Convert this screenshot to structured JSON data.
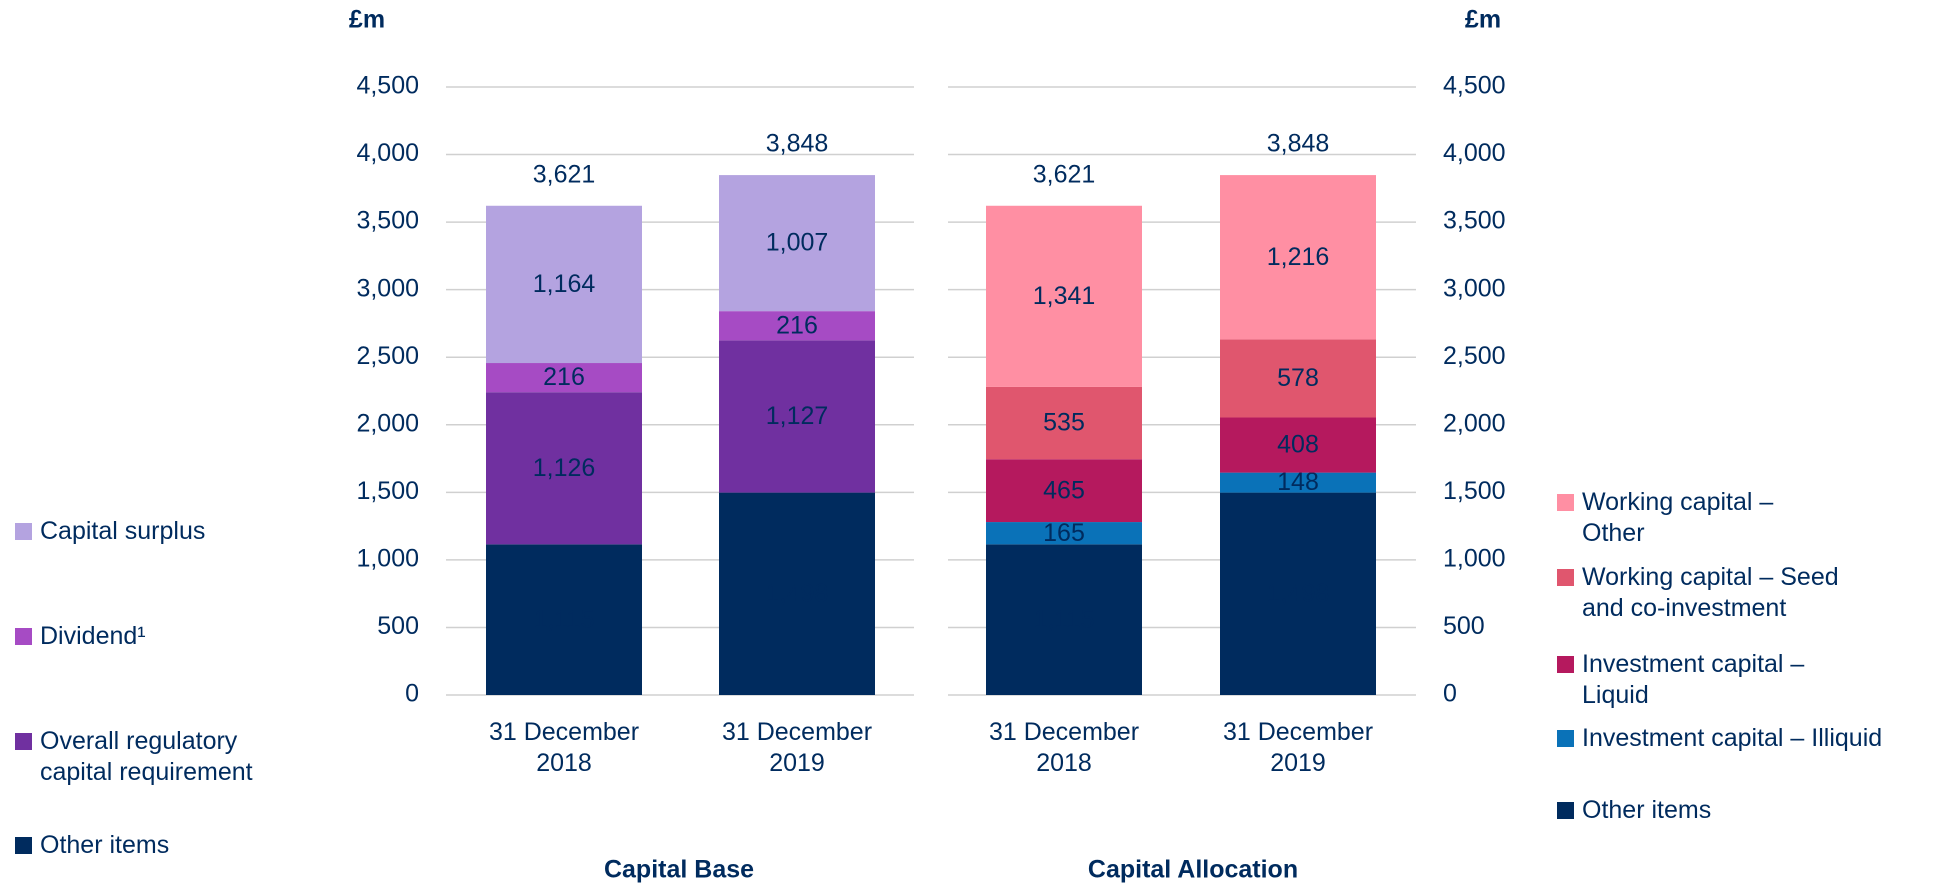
{
  "chart_data": [
    {
      "type": "bar",
      "stacked": true,
      "title": "Capital Base",
      "ylabel": "£m",
      "categories": [
        "31 December 2018",
        "31 December 2019"
      ],
      "series": [
        {
          "name": "Other items",
          "color": "#002b5e",
          "values": [
            1115,
            1498
          ],
          "value_labels": [
            "1,115",
            "1,498"
          ]
        },
        {
          "name": "Overall regulatory capital requirement",
          "color": "#7030a0",
          "values": [
            1126,
            1127
          ],
          "value_labels": [
            "1,126",
            "1,127"
          ]
        },
        {
          "name": "Dividend¹",
          "color": "#a64bc4",
          "values": [
            216,
            216
          ]
        },
        {
          "name": "Capital surplus",
          "color": "#b4a3e0",
          "values": [
            1164,
            1007
          ],
          "value_labels": [
            "1,164",
            "1,007"
          ]
        }
      ],
      "totals": {
        "values": [
          3621,
          3848
        ],
        "value_labels": [
          "3,621",
          "3,848"
        ]
      },
      "ylim": [
        0,
        4500
      ],
      "yticks": [
        0,
        500,
        {
          "value": 1000,
          "label": "1,000"
        },
        {
          "value": 1500,
          "label": "1,500"
        },
        {
          "value": 2000,
          "label": "2,000"
        },
        {
          "value": 2500,
          "label": "2,500"
        },
        {
          "value": 3000,
          "label": "3,000"
        },
        {
          "value": 3500,
          "label": "3,500"
        },
        {
          "value": 4000,
          "label": "4,000"
        },
        {
          "value": 4500,
          "label": "4,500"
        }
      ],
      "grid": true,
      "legend": "left"
    },
    {
      "type": "bar",
      "stacked": true,
      "title": "Capital Allocation",
      "ylabel": "£m",
      "categories": [
        "31 December 2018",
        "31 December 2019"
      ],
      "series": [
        {
          "name": "Other items",
          "color": "#002b5e",
          "values": [
            1115,
            1498
          ],
          "value_labels": [
            "1,115",
            "1,498"
          ]
        },
        {
          "name": "Investment capital – Illiquid",
          "color": "#0a72b8",
          "values": [
            165,
            148
          ]
        },
        {
          "name": "Investment capital – Liquid",
          "color": "#b5195e",
          "values": [
            465,
            408
          ]
        },
        {
          "name": "Working capital – Seed and co-investment",
          "color": "#e0566e",
          "values": [
            535,
            578
          ]
        },
        {
          "name": "Working capital – Other",
          "color": "#ff8fa3",
          "values": [
            1341,
            1216
          ],
          "value_labels": [
            "1,341",
            "1,216"
          ]
        }
      ],
      "totals": {
        "values": [
          3621,
          3848
        ],
        "value_labels": [
          "3,621",
          "3,848"
        ]
      },
      "ylim": [
        0,
        4500
      ],
      "yticks": [
        0,
        500,
        {
          "value": 1000,
          "label": "1,000"
        },
        {
          "value": 1500,
          "label": "1,500"
        },
        {
          "value": 2000,
          "label": "2,000"
        },
        {
          "value": 2500,
          "label": "2,500"
        },
        {
          "value": 3000,
          "label": "3,000"
        },
        {
          "value": 3500,
          "label": "3,500"
        },
        {
          "value": 4000,
          "label": "4,000"
        },
        {
          "value": 4500,
          "label": "4,500"
        }
      ],
      "grid": true,
      "legend": "right"
    }
  ]
}
